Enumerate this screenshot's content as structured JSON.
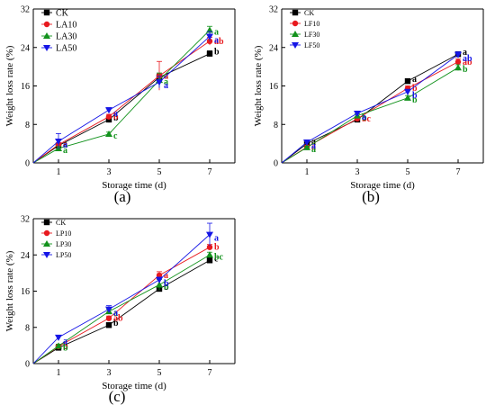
{
  "colors": {
    "CK": "#000000",
    "S10": "#e8191e",
    "S30": "#12921c",
    "S50": "#1515e6"
  },
  "chart_data": [
    {
      "type": "line",
      "panel_label": "(a)",
      "xlabel": "Storage time (d)",
      "ylabel": "Weight loss rate (%)",
      "x": [
        0,
        1,
        3,
        5,
        7
      ],
      "x_ticks": [
        1,
        3,
        5,
        7
      ],
      "xlim": [
        0,
        8
      ],
      "ylim": [
        0,
        32
      ],
      "y_ticks": [
        0,
        8,
        16,
        24,
        32
      ],
      "legend_position": "top-left",
      "series": [
        {
          "name": "CK",
          "marker": "square",
          "values": [
            0,
            3.6,
            9.0,
            17.8,
            22.7
          ],
          "errors": [
            0,
            0.5,
            0.6,
            0.7,
            0.6
          ],
          "labels": [
            "",
            "a",
            "b",
            "a",
            "b"
          ]
        },
        {
          "name": "LA10",
          "marker": "circle",
          "values": [
            0,
            3.8,
            9.6,
            18.1,
            25.3
          ],
          "errors": [
            0,
            0.4,
            0.5,
            3.0,
            0.8
          ],
          "labels": [
            "",
            "a",
            "b",
            "a",
            "ab"
          ]
        },
        {
          "name": "LA30",
          "marker": "triangle-up",
          "values": [
            0,
            3.0,
            6.0,
            17.2,
            27.6
          ],
          "errors": [
            0,
            0.4,
            0.4,
            1.5,
            0.8
          ],
          "labels": [
            "",
            "a",
            "c",
            "a",
            "a"
          ]
        },
        {
          "name": "LA50",
          "marker": "triangle-down",
          "values": [
            0,
            4.5,
            11.0,
            16.8,
            26.3
          ],
          "errors": [
            0,
            1.6,
            0.5,
            1.2,
            1.0
          ],
          "labels": [
            "",
            "a",
            "a",
            "a",
            "a"
          ]
        }
      ]
    },
    {
      "type": "line",
      "panel_label": "(b)",
      "xlabel": "Storage time (d)",
      "ylabel": "Weight loss rate (%)",
      "x": [
        0,
        1,
        3,
        5,
        7
      ],
      "x_ticks": [
        1,
        3,
        5,
        7
      ],
      "xlim": [
        0,
        8
      ],
      "ylim": [
        0,
        32
      ],
      "y_ticks": [
        0,
        8,
        16,
        24,
        32
      ],
      "legend_position": "top-left",
      "series": [
        {
          "name": "CK",
          "marker": "square",
          "values": [
            0,
            4.0,
            9.0,
            17.0,
            22.6
          ],
          "errors": [
            0,
            0.3,
            0.4,
            0.5,
            0.5
          ],
          "labels": [
            "",
            "a",
            "c",
            "a",
            "a"
          ]
        },
        {
          "name": "LF10",
          "marker": "circle",
          "values": [
            0,
            3.3,
            9.2,
            15.5,
            21.0
          ],
          "errors": [
            0,
            0.3,
            0.4,
            0.5,
            0.6
          ],
          "labels": [
            "",
            "a",
            "bc",
            "b",
            "ab"
          ]
        },
        {
          "name": "LF30",
          "marker": "triangle-up",
          "values": [
            0,
            3.2,
            9.8,
            13.5,
            19.8
          ],
          "errors": [
            0,
            0.3,
            0.4,
            0.5,
            0.6
          ],
          "labels": [
            "",
            "a",
            "b",
            "b",
            "b"
          ]
        },
        {
          "name": "LF50",
          "marker": "triangle-down",
          "values": [
            0,
            4.3,
            10.3,
            14.8,
            22.5
          ],
          "errors": [
            0,
            0.3,
            0.4,
            0.5,
            0.6
          ],
          "labels": [
            "",
            "a",
            "a",
            "b",
            "ab"
          ]
        }
      ]
    },
    {
      "type": "line",
      "panel_label": "(c)",
      "xlabel": "Storage time (d)",
      "ylabel": "Weight loss rate (%)",
      "x": [
        0,
        1,
        3,
        5,
        7
      ],
      "x_ticks": [
        1,
        3,
        5,
        7
      ],
      "xlim": [
        0,
        8
      ],
      "ylim": [
        0,
        32
      ],
      "y_ticks": [
        0,
        8,
        16,
        24,
        32
      ],
      "legend_position": "top-left",
      "series": [
        {
          "name": "CK",
          "marker": "square",
          "values": [
            0,
            3.5,
            8.5,
            16.5,
            22.8
          ],
          "errors": [
            0,
            0.4,
            0.5,
            0.6,
            0.6
          ],
          "labels": [
            "",
            "b",
            "b",
            "b",
            "c"
          ]
        },
        {
          "name": "LP10",
          "marker": "circle",
          "values": [
            0,
            3.8,
            10.0,
            19.5,
            25.7
          ],
          "errors": [
            0,
            0.4,
            0.5,
            0.8,
            0.6
          ],
          "labels": [
            "",
            "b",
            "ab",
            "a",
            "b"
          ]
        },
        {
          "name": "LP30",
          "marker": "triangle-up",
          "values": [
            0,
            3.9,
            11.5,
            17.4,
            24.0
          ],
          "errors": [
            0,
            0.4,
            0.5,
            1.2,
            0.6
          ],
          "labels": [
            "",
            "b",
            "a",
            "b",
            "bc"
          ]
        },
        {
          "name": "LP50",
          "marker": "triangle-down",
          "values": [
            0,
            5.8,
            12.0,
            18.5,
            28.5
          ],
          "errors": [
            0,
            0.4,
            0.8,
            0.6,
            2.5
          ],
          "labels": [
            "",
            "a",
            "a",
            "b",
            "a"
          ]
        }
      ]
    }
  ]
}
